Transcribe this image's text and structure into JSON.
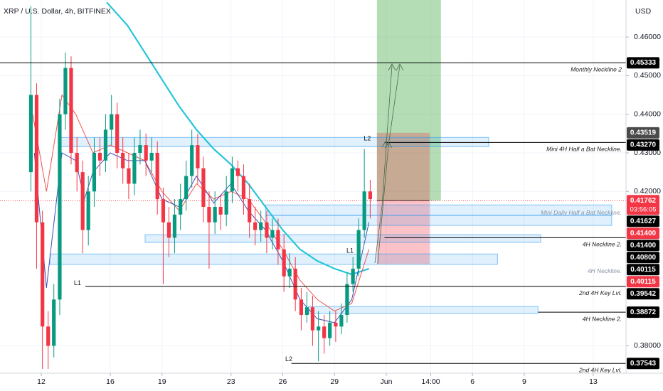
{
  "chart_data": {
    "type": "candlestick",
    "title": "XRP / U.S. Dollar, 4h, BITFINEX",
    "currency": "USD",
    "xlim": [
      9.608,
      45.9
    ],
    "ylim": [
      0.3729,
      0.4696
    ],
    "xticks": [
      12,
      16,
      19,
      23,
      26,
      29,
      {
        "value": 32,
        "label": "Jun"
      },
      {
        "value": 34.58,
        "label": "14:00"
      },
      {
        "value": 37,
        "label": "6"
      },
      {
        "value": 40,
        "label": "9"
      },
      {
        "value": 44,
        "label": "13"
      }
    ],
    "yticks": [
      {
        "value": 0.46,
        "label": "0.46000"
      },
      {
        "value": 0.45,
        "label": "0.45000"
      },
      {
        "value": 0.44,
        "label": "0.44000"
      },
      {
        "value": 0.43,
        "label": "0.43000"
      },
      {
        "value": 0.42,
        "label": "0.42000"
      },
      {
        "value": 0.38,
        "label": "0.38000"
      }
    ],
    "grid": true,
    "up_color": "#089981",
    "down_color": "#f23645",
    "x": [
      11.4,
      11.73,
      12.07,
      12.4,
      12.73,
      13.07,
      13.4,
      13.73,
      14.07,
      14.4,
      14.73,
      15.07,
      15.4,
      15.73,
      16.07,
      16.4,
      16.73,
      17.07,
      17.4,
      17.73,
      18.07,
      18.4,
      18.73,
      19.07,
      19.4,
      19.73,
      20.07,
      20.4,
      20.73,
      21.07,
      21.4,
      21.73,
      22.07,
      22.4,
      22.73,
      23.07,
      23.4,
      23.73,
      24.07,
      24.4,
      24.73,
      25.07,
      25.4,
      25.73,
      26.07,
      26.4,
      26.73,
      27.07,
      27.4,
      27.73,
      28.07,
      28.4,
      28.73,
      29.07,
      29.4,
      29.73,
      30.07,
      30.4,
      30.73,
      31.07
    ],
    "open": [
      0.425,
      0.445,
      0.412,
      0.385,
      0.38,
      0.392,
      0.44,
      0.452,
      0.43,
      0.425,
      0.41,
      0.42,
      0.43,
      0.428,
      0.436,
      0.44,
      0.43,
      0.426,
      0.422,
      0.43,
      0.432,
      0.428,
      0.43,
      0.418,
      0.412,
      0.408,
      0.414,
      0.418,
      0.424,
      0.432,
      0.426,
      0.416,
      0.412,
      0.416,
      0.414,
      0.42,
      0.426,
      0.424,
      0.418,
      0.412,
      0.41,
      0.412,
      0.408,
      0.41,
      0.405,
      0.398,
      0.4,
      0.392,
      0.388,
      0.39,
      0.384,
      0.385,
      0.382,
      0.386,
      0.385,
      0.388,
      0.396,
      0.4,
      0.41,
      0.42
    ],
    "high": [
      0.468,
      0.448,
      0.415,
      0.389,
      0.396,
      0.444,
      0.456,
      0.455,
      0.434,
      0.428,
      0.424,
      0.434,
      0.434,
      0.44,
      0.445,
      0.443,
      0.434,
      0.43,
      0.434,
      0.436,
      0.435,
      0.434,
      0.433,
      0.421,
      0.416,
      0.418,
      0.422,
      0.428,
      0.436,
      0.435,
      0.429,
      0.42,
      0.42,
      0.419,
      0.424,
      0.429,
      0.428,
      0.427,
      0.422,
      0.416,
      0.415,
      0.415,
      0.413,
      0.413,
      0.409,
      0.404,
      0.403,
      0.395,
      0.394,
      0.393,
      0.389,
      0.388,
      0.389,
      0.389,
      0.391,
      0.399,
      0.403,
      0.413,
      0.431,
      0.423
    ],
    "low": [
      0.42,
      0.4,
      0.374,
      0.374,
      0.377,
      0.388,
      0.436,
      0.427,
      0.42,
      0.404,
      0.406,
      0.416,
      0.424,
      0.425,
      0.432,
      0.426,
      0.422,
      0.418,
      0.419,
      0.427,
      0.424,
      0.425,
      0.414,
      0.396,
      0.403,
      0.404,
      0.41,
      0.415,
      0.421,
      0.422,
      0.412,
      0.4,
      0.409,
      0.41,
      0.411,
      0.417,
      0.42,
      0.414,
      0.408,
      0.406,
      0.407,
      0.404,
      0.405,
      0.401,
      0.394,
      0.395,
      0.389,
      0.384,
      0.386,
      0.38,
      0.376,
      0.378,
      0.38,
      0.381,
      0.383,
      0.386,
      0.394,
      0.398,
      0.408,
      0.413
    ],
    "close": [
      0.445,
      0.412,
      0.385,
      0.38,
      0.392,
      0.44,
      0.452,
      0.43,
      0.425,
      0.41,
      0.42,
      0.43,
      0.428,
      0.436,
      0.44,
      0.43,
      0.426,
      0.422,
      0.43,
      0.432,
      0.428,
      0.43,
      0.418,
      0.412,
      0.408,
      0.414,
      0.418,
      0.424,
      0.432,
      0.426,
      0.416,
      0.412,
      0.416,
      0.414,
      0.42,
      0.426,
      0.424,
      0.418,
      0.412,
      0.41,
      0.412,
      0.408,
      0.41,
      0.405,
      0.398,
      0.4,
      0.392,
      0.388,
      0.39,
      0.384,
      0.385,
      0.382,
      0.386,
      0.385,
      0.388,
      0.396,
      0.4,
      0.41,
      0.42,
      0.418
    ],
    "lines": [
      {
        "color": "#26c6da",
        "width": 2.2,
        "x": [
          15.8,
          17,
          18,
          19,
          20,
          21,
          22,
          23,
          24,
          25,
          26,
          27,
          28,
          29,
          30,
          31
        ],
        "values": [
          0.469,
          0.463,
          0.456,
          0.449,
          0.442,
          0.436,
          0.431,
          0.427,
          0.422,
          0.416,
          0.41,
          0.405,
          0.402,
          0.4,
          0.3985,
          0.4
        ]
      },
      {
        "color": "#ef5350",
        "width": 1,
        "x": [
          11.5,
          12.3,
          13.2,
          14,
          15,
          16,
          17,
          18,
          19,
          20,
          21,
          22,
          23,
          24,
          25,
          26,
          27,
          28,
          29,
          30,
          31
        ],
        "values": [
          0.44,
          0.42,
          0.445,
          0.44,
          0.43,
          0.432,
          0.43,
          0.428,
          0.42,
          0.415,
          0.422,
          0.418,
          0.42,
          0.418,
          0.412,
          0.405,
          0.397,
          0.392,
          0.389,
          0.391,
          0.405
        ]
      },
      {
        "color": "#3f51b5",
        "width": 1,
        "x": [
          11.6,
          12.3,
          13.2,
          14,
          14.5,
          15,
          16,
          17,
          18,
          19,
          20,
          21,
          22,
          23,
          24,
          25,
          26,
          27,
          28,
          29,
          30,
          31
        ],
        "values": [
          0.43,
          0.395,
          0.43,
          0.428,
          0.418,
          0.425,
          0.43,
          0.428,
          0.428,
          0.418,
          0.416,
          0.424,
          0.417,
          0.422,
          0.415,
          0.41,
          0.402,
          0.392,
          0.387,
          0.386,
          0.392,
          0.412
        ]
      }
    ],
    "zones": [
      {
        "x": [
          13.1,
          37.94
        ],
        "values": [
          0.4316,
          0.434
        ]
      },
      {
        "x": [
          25.0,
          45.07
        ],
        "values": [
          0.4138,
          0.4165
        ]
      },
      {
        "x": [
          25.0,
          45.07
        ],
        "values": [
          0.4112,
          0.4138
        ]
      },
      {
        "x": [
          18.02,
          40.95
        ],
        "values": [
          0.4068,
          0.4088
        ]
      },
      {
        "x": [
          12.5,
          38.45
        ],
        "values": [
          0.4011,
          0.4038
        ]
      },
      {
        "x": [
          27.5,
          40.8
        ],
        "values": [
          0.3884,
          0.3902
        ]
      }
    ],
    "boxes": [
      {
        "x": [
          31.46,
          35.17
        ],
        "values": [
          0.41762,
          0.4696
        ],
        "color": "rgba(76,175,80,0.42)"
      },
      {
        "x": [
          31.46,
          34.52
        ],
        "values": [
          0.40115,
          0.43519
        ],
        "color": "rgba(242,54,69,0.3)"
      }
    ],
    "annotations": [
      {
        "price": 0.45333,
        "text": "Monthly Neckline 2",
        "from": 9.608
      },
      {
        "price": 0.4327,
        "text": "Mini 4H Half a Bat Neckline.",
        "from": 31.9
      },
      {
        "price": 0.41627,
        "text": "Mini Daily Half a Bat Neckline.",
        "from": null
      },
      {
        "price": 0.408,
        "text": "4H Neckline 2.",
        "from": 31.9
      },
      {
        "price": 0.40115,
        "text": "4H Neckline.",
        "from": null
      },
      {
        "price": 0.39542,
        "text": "2nd 4H Key Lvl.",
        "from": 14.56
      },
      {
        "price": 0.38872,
        "text": "4H Neckline 2.",
        "from": 40.8
      },
      {
        "price": 0.37543,
        "text": "2nd 4H Key Lvl.",
        "from": 26.5
      }
    ],
    "markers": [
      {
        "text": "L1",
        "x": 14.1,
        "price": 0.3962
      },
      {
        "text": "L2",
        "x": 26.35,
        "price": 0.3765
      },
      {
        "text": "L1",
        "x": 29.9,
        "price": 0.4046
      },
      {
        "text": "L2",
        "x": 30.9,
        "price": 0.4337
      }
    ],
    "price_labels": [
      {
        "value": 0.45333,
        "label": "0.45333",
        "color": "#000000"
      },
      {
        "value": 0.43519,
        "label": "0.43519",
        "color": "#4a4a4a"
      },
      {
        "value": 0.4327,
        "label": "0.43270",
        "color": "#000000"
      },
      {
        "value": 0.41762,
        "label": "0.41762",
        "color": "#f23645",
        "countdown": "03:56:05"
      },
      {
        "value": 0.41627,
        "label": "0.41627",
        "color": "#000000"
      },
      {
        "value": 0.414,
        "label": "0.41400",
        "color": "#f23645"
      },
      {
        "value": 0.414,
        "label": "0.41400",
        "color": "#000000"
      },
      {
        "value": 0.408,
        "label": "0.40800",
        "color": "#000000"
      },
      {
        "value": 0.40115,
        "label": "0.40115",
        "color": "#000000"
      },
      {
        "value": 0.40115,
        "label": "0.40115",
        "color": "#f23645"
      },
      {
        "value": 0.39542,
        "label": "0.39542",
        "color": "#000000"
      },
      {
        "value": 0.38872,
        "label": "0.38872",
        "color": "#000000"
      },
      {
        "value": 0.37543,
        "label": "0.37543",
        "color": "#000000"
      }
    ]
  }
}
